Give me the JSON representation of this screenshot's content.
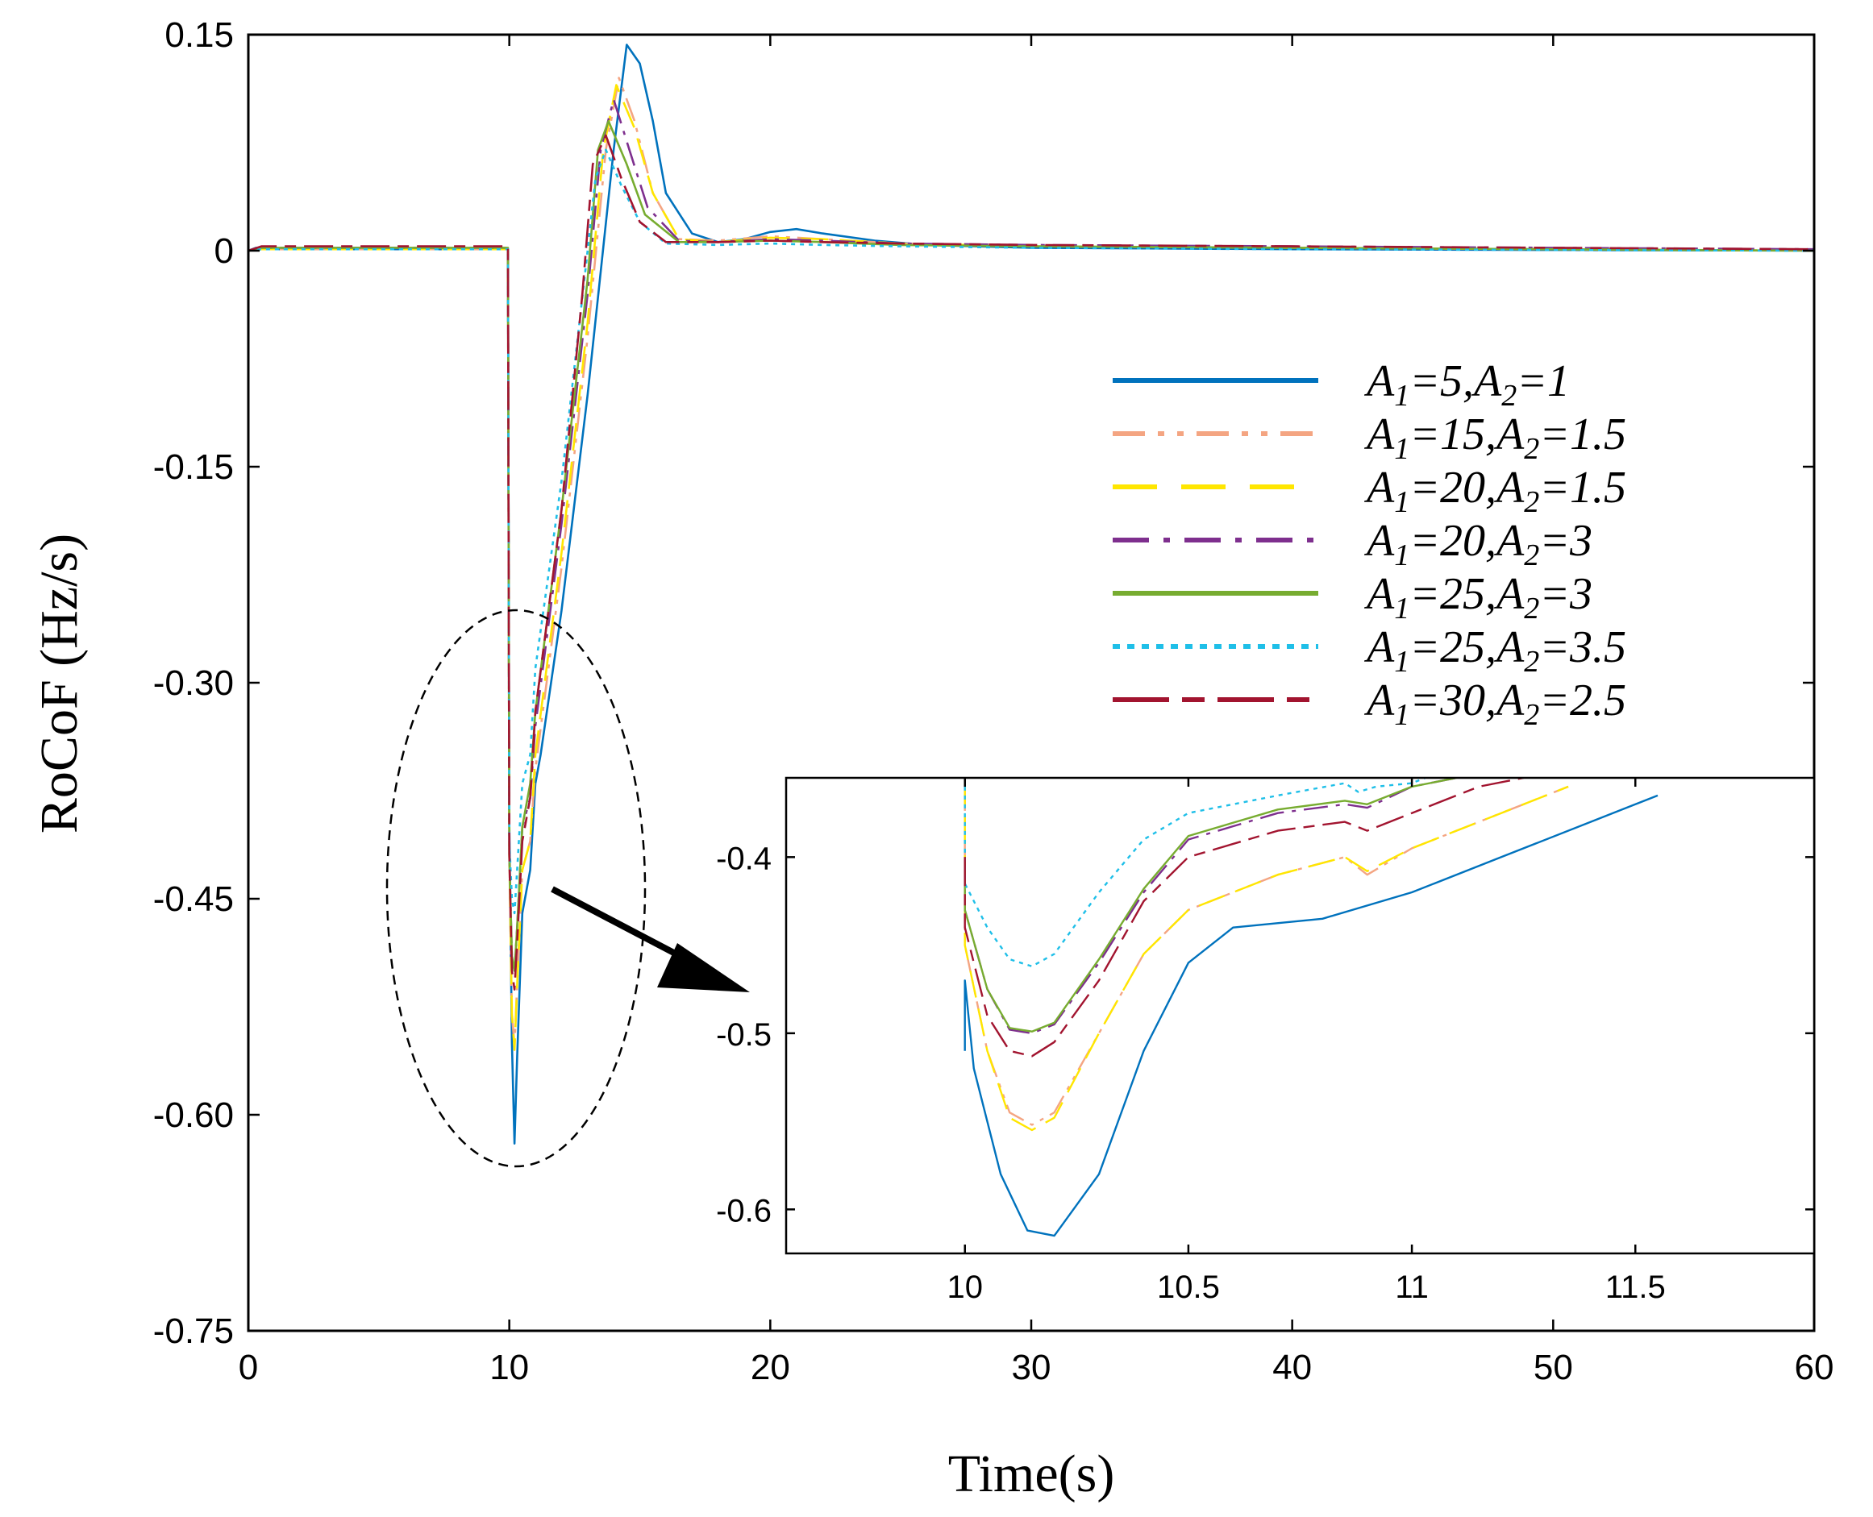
{
  "chart_data": [
    {
      "type": "line",
      "name": "main",
      "title": "",
      "xlabel": "Time(s)",
      "ylabel": "RoCoF (Hz/s)",
      "xlim": [
        0,
        60
      ],
      "ylim": [
        -0.75,
        0.15
      ],
      "xticks": [
        0,
        10,
        20,
        30,
        40,
        50,
        60
      ],
      "yticks": [
        0.15,
        0,
        -0.15,
        -0.3,
        -0.45,
        -0.6,
        -0.75
      ],
      "xtick_labels": [
        "0",
        "10",
        "20",
        "30",
        "40",
        "50",
        "60"
      ],
      "ytick_labels": [
        "0.15",
        "0",
        "-0.15",
        "-0.30",
        "-0.45",
        "-0.60",
        "-0.75"
      ],
      "legend_position": "center-right",
      "series": [
        {
          "name": "A1=5,A2=1",
          "legend": {
            "a": "A",
            "s1": "1",
            "v1": "=5,",
            "s2": "2",
            "v2": "=1"
          },
          "color": "#0072BD",
          "dash": "solid",
          "x": [
            0,
            0.3,
            0.8,
            9.95,
            10.0,
            10.1,
            10.2,
            10.3,
            10.5,
            10.8,
            11,
            11.2,
            12,
            13,
            14,
            14.5,
            15,
            15.5,
            16,
            17,
            18,
            19,
            20,
            21,
            22,
            24,
            26,
            30,
            40,
            50,
            60
          ],
          "y": [
            0,
            0.002,
            0.001,
            0.001,
            -0.4,
            -0.55,
            -0.62,
            -0.56,
            -0.46,
            -0.43,
            -0.37,
            -0.35,
            -0.25,
            -0.1,
            0.07,
            0.143,
            0.13,
            0.09,
            0.04,
            0.012,
            0.006,
            0.008,
            0.013,
            0.015,
            0.012,
            0.007,
            0.004,
            0.002,
            0.001,
            0.0005,
            0
          ]
        },
        {
          "name": "A1=15,A2=1.5",
          "legend": {
            "a": "A",
            "s1": "1",
            "v1": "=15,",
            "s2": "2",
            "v2": "=1.5"
          },
          "color": "#F4A582",
          "dash": "dashdotdot",
          "x": [
            0,
            0.5,
            9.95,
            10.0,
            10.1,
            10.2,
            10.3,
            10.5,
            10.8,
            11,
            12,
            13,
            13.7,
            14.2,
            14.8,
            15.5,
            16.5,
            18,
            20,
            22,
            25,
            30,
            40,
            50,
            60
          ],
          "y": [
            0,
            0.001,
            0.001,
            -0.42,
            -0.53,
            -0.552,
            -0.51,
            -0.43,
            -0.41,
            -0.36,
            -0.22,
            -0.06,
            0.07,
            0.12,
            0.09,
            0.04,
            0.008,
            0.007,
            0.01,
            0.008,
            0.005,
            0.003,
            0.002,
            0.001,
            0
          ]
        },
        {
          "name": "A1=20,A2=1.5",
          "legend": {
            "a": "A",
            "s1": "1",
            "v1": "=20,",
            "s2": "2",
            "v2": "=1.5"
          },
          "color": "#FFE600",
          "dash": "longdash",
          "x": [
            0,
            0.5,
            9.95,
            10.0,
            10.1,
            10.2,
            10.3,
            10.5,
            10.8,
            11,
            12,
            13,
            13.6,
            14.1,
            14.8,
            15.5,
            16.5,
            18,
            20,
            22,
            25,
            30,
            40,
            50,
            60
          ],
          "y": [
            0,
            0.001,
            0.001,
            -0.42,
            -0.53,
            -0.555,
            -0.51,
            -0.43,
            -0.41,
            -0.35,
            -0.21,
            -0.05,
            0.07,
            0.115,
            0.085,
            0.04,
            0.008,
            0.006,
            0.009,
            0.008,
            0.005,
            0.003,
            0.002,
            0.001,
            0
          ]
        },
        {
          "name": "A1=20,A2=3",
          "legend": {
            "a": "A",
            "s1": "1",
            "v1": "=20,",
            "s2": "2",
            "v2": "=3"
          },
          "color": "#7E2F8E",
          "dash": "dashdot",
          "x": [
            0,
            0.5,
            9.95,
            10.0,
            10.1,
            10.2,
            10.3,
            10.5,
            10.8,
            11,
            12,
            13,
            13.5,
            14.0,
            14.6,
            15.3,
            16.5,
            18,
            20,
            22,
            25,
            30,
            40,
            50,
            60
          ],
          "y": [
            0,
            0.002,
            0.002,
            -0.42,
            -0.49,
            -0.5,
            -0.47,
            -0.4,
            -0.38,
            -0.33,
            -0.19,
            -0.03,
            0.07,
            0.105,
            0.07,
            0.03,
            0.007,
            0.006,
            0.008,
            0.007,
            0.005,
            0.004,
            0.003,
            0.002,
            0.001
          ]
        },
        {
          "name": "A1=25,A2=3",
          "legend": {
            "a": "A",
            "s1": "1",
            "v1": "=25,",
            "s2": "2",
            "v2": "=3"
          },
          "color": "#77AC30",
          "dash": "solid",
          "x": [
            0,
            0.5,
            9.95,
            10.0,
            10.1,
            10.2,
            10.3,
            10.5,
            10.8,
            11,
            12,
            13,
            13.4,
            13.8,
            14.5,
            15.2,
            16.5,
            18,
            20,
            22,
            25,
            30,
            40,
            50,
            60
          ],
          "y": [
            0,
            0.002,
            0.002,
            -0.42,
            -0.49,
            -0.5,
            -0.47,
            -0.4,
            -0.37,
            -0.32,
            -0.18,
            -0.02,
            0.07,
            0.09,
            0.06,
            0.025,
            0.006,
            0.006,
            0.007,
            0.006,
            0.004,
            0.003,
            0.002,
            0.001,
            0
          ]
        },
        {
          "name": "A1=25,A2=3.5",
          "legend": {
            "a": "A",
            "s1": "1",
            "v1": "=25,",
            "s2": "2",
            "v2": "=3.5"
          },
          "color": "#1FBFE8",
          "dash": "dotted",
          "x": [
            0,
            0.5,
            9.95,
            10.0,
            10.1,
            10.2,
            10.3,
            10.5,
            10.8,
            11,
            12,
            13,
            13.3,
            13.7,
            14.3,
            15,
            16,
            18,
            20,
            22,
            25,
            30,
            40,
            50,
            60
          ],
          "y": [
            0,
            0.001,
            0.001,
            -0.41,
            -0.45,
            -0.46,
            -0.43,
            -0.37,
            -0.35,
            -0.29,
            -0.16,
            0.0,
            0.05,
            0.07,
            0.045,
            0.02,
            0.005,
            0.004,
            0.005,
            0.004,
            0.003,
            0.002,
            0.001,
            0.0005,
            0
          ]
        },
        {
          "name": "A1=30,A2=2.5",
          "legend": {
            "a": "A",
            "s1": "1",
            "v1": "=30,",
            "s2": "2",
            "v2": "=2.5"
          },
          "color": "#A2142F",
          "dash": "longshort",
          "x": [
            0,
            0.5,
            9.95,
            10.0,
            10.1,
            10.2,
            10.3,
            10.5,
            10.8,
            11,
            12,
            12.8,
            13.2,
            13.7,
            14.3,
            15,
            16,
            18,
            20,
            22,
            25,
            30,
            40,
            50,
            60
          ],
          "y": [
            0,
            0.003,
            0.003,
            -0.42,
            -0.5,
            -0.513,
            -0.48,
            -0.41,
            -0.38,
            -0.32,
            -0.18,
            -0.03,
            0.06,
            0.08,
            0.05,
            0.02,
            0.006,
            0.006,
            0.007,
            0.006,
            0.005,
            0.004,
            0.003,
            0.002,
            0.001
          ]
        }
      ]
    },
    {
      "type": "line",
      "name": "inset",
      "xlim": [
        9.6,
        11.9
      ],
      "ylim": [
        -0.625,
        -0.355
      ],
      "xticks": [
        10,
        10.5,
        11,
        11.5
      ],
      "yticks": [
        -0.4,
        -0.5,
        -0.6
      ],
      "xtick_labels": [
        "10",
        "10.5",
        "11",
        "11.5"
      ],
      "ytick_labels": [
        "-0.4",
        "-0.5",
        "-0.6"
      ],
      "series": [
        {
          "name": "A1=5,A2=1",
          "color": "#0072BD",
          "dash": "solid",
          "x": [
            10.0,
            10.0,
            10.02,
            10.08,
            10.14,
            10.2,
            10.3,
            10.4,
            10.5,
            10.6,
            10.8,
            11.0,
            11.2,
            11.5,
            11.55
          ],
          "y": [
            -0.51,
            -0.47,
            -0.52,
            -0.58,
            -0.612,
            -0.615,
            -0.58,
            -0.51,
            -0.46,
            -0.44,
            -0.435,
            -0.42,
            -0.4,
            -0.37,
            -0.365
          ]
        },
        {
          "name": "A1=15,A2=1.5",
          "color": "#F4A582",
          "dash": "dashdotdot",
          "x": [
            10.0,
            10.0,
            10.05,
            10.1,
            10.15,
            10.2,
            10.3,
            10.4,
            10.5,
            10.7,
            10.85,
            10.9,
            11.0,
            11.2,
            11.35
          ],
          "y": [
            -0.36,
            -0.45,
            -0.51,
            -0.545,
            -0.552,
            -0.545,
            -0.5,
            -0.455,
            -0.43,
            -0.41,
            -0.4,
            -0.41,
            -0.395,
            -0.375,
            -0.36
          ]
        },
        {
          "name": "A1=20,A2=1.5",
          "color": "#FFE600",
          "dash": "longdash",
          "x": [
            10.0,
            10.0,
            10.05,
            10.1,
            10.15,
            10.2,
            10.3,
            10.4,
            10.5,
            10.7,
            10.85,
            10.9,
            11.0,
            11.2,
            11.35
          ],
          "y": [
            -0.355,
            -0.45,
            -0.51,
            -0.548,
            -0.555,
            -0.548,
            -0.5,
            -0.455,
            -0.43,
            -0.41,
            -0.4,
            -0.408,
            -0.395,
            -0.375,
            -0.36
          ]
        },
        {
          "name": "A1=20,A2=3",
          "color": "#7E2F8E",
          "dash": "dashdot",
          "x": [
            10.0,
            10.0,
            10.05,
            10.1,
            10.15,
            10.2,
            10.3,
            10.4,
            10.5,
            10.7,
            10.85,
            10.9,
            11.0,
            11.1
          ],
          "y": [
            -0.4,
            -0.43,
            -0.475,
            -0.498,
            -0.5,
            -0.495,
            -0.46,
            -0.42,
            -0.39,
            -0.375,
            -0.37,
            -0.372,
            -0.36,
            -0.355
          ]
        },
        {
          "name": "A1=25,A2=3",
          "color": "#77AC30",
          "dash": "solid",
          "x": [
            10.0,
            10.0,
            10.05,
            10.1,
            10.15,
            10.2,
            10.3,
            10.4,
            10.5,
            10.7,
            10.85,
            10.9,
            11.0,
            11.1
          ],
          "y": [
            -0.4,
            -0.43,
            -0.475,
            -0.497,
            -0.499,
            -0.494,
            -0.458,
            -0.418,
            -0.388,
            -0.373,
            -0.368,
            -0.37,
            -0.36,
            -0.355
          ]
        },
        {
          "name": "A1=25,A2=3.5",
          "color": "#1FBFE8",
          "dash": "dotted",
          "x": [
            10.0,
            10.0,
            10.05,
            10.1,
            10.15,
            10.2,
            10.3,
            10.4,
            10.5,
            10.7,
            10.85,
            10.88,
            10.92,
            11.0,
            11.03
          ],
          "y": [
            -0.36,
            -0.415,
            -0.44,
            -0.458,
            -0.462,
            -0.455,
            -0.42,
            -0.39,
            -0.375,
            -0.365,
            -0.358,
            -0.363,
            -0.36,
            -0.358,
            -0.355
          ]
        },
        {
          "name": "A1=30,A2=2.5",
          "color": "#A2142F",
          "dash": "longshort",
          "x": [
            10.0,
            10.0,
            10.05,
            10.1,
            10.15,
            10.2,
            10.3,
            10.4,
            10.5,
            10.7,
            10.85,
            10.9,
            11.0,
            11.15,
            11.25
          ],
          "y": [
            -0.4,
            -0.44,
            -0.49,
            -0.51,
            -0.513,
            -0.505,
            -0.47,
            -0.425,
            -0.4,
            -0.385,
            -0.38,
            -0.385,
            -0.375,
            -0.36,
            -0.355
          ]
        }
      ]
    }
  ]
}
